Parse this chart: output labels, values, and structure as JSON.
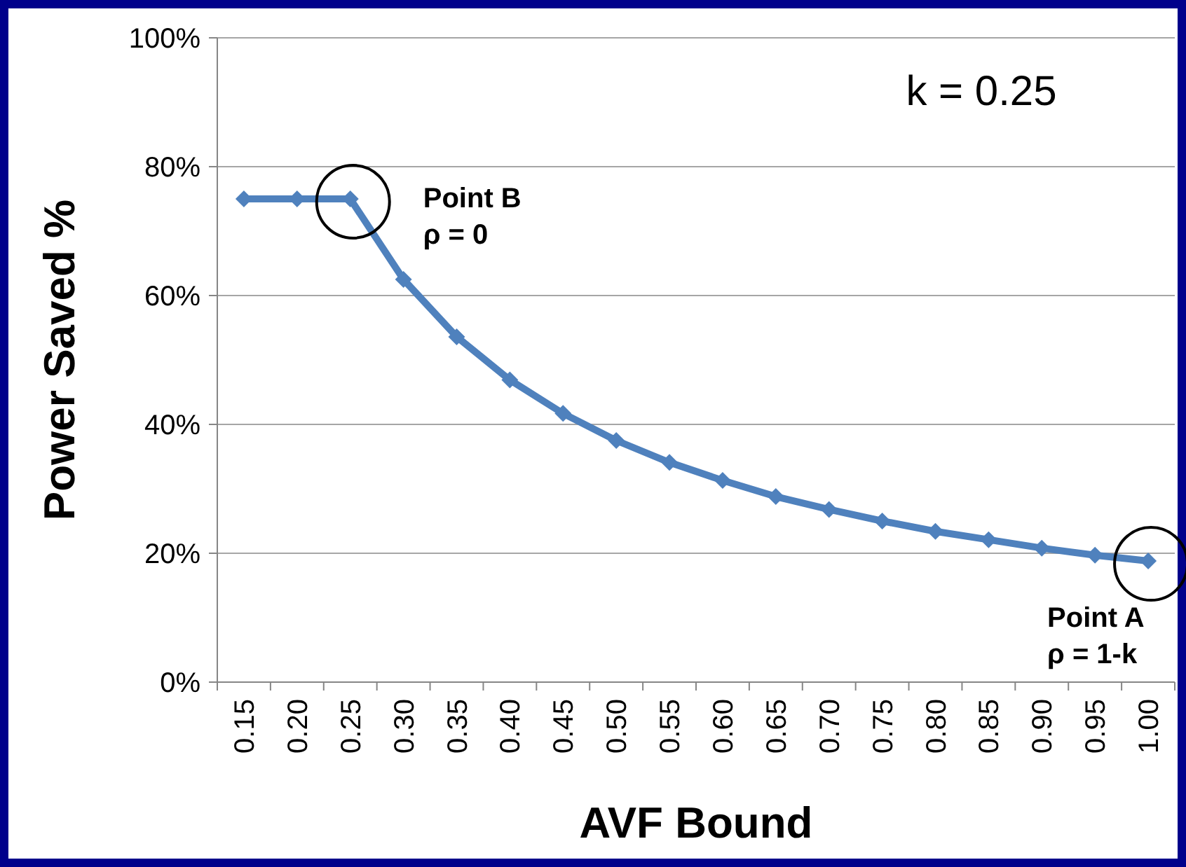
{
  "chart_data": {
    "type": "line",
    "xlabel": "AVF Bound",
    "ylabel": "Power Saved %",
    "categories": [
      "0.15",
      "0.20",
      "0.25",
      "0.30",
      "0.35",
      "0.40",
      "0.45",
      "0.50",
      "0.55",
      "0.60",
      "0.65",
      "0.70",
      "0.75",
      "0.80",
      "0.85",
      "0.90",
      "0.95",
      "1.00"
    ],
    "series": [
      {
        "color": "#4f81bd",
        "values": [
          75,
          75,
          75,
          62.5,
          53.6,
          46.9,
          41.7,
          37.5,
          34.1,
          31.3,
          28.8,
          26.8,
          25,
          23.4,
          22.1,
          20.8,
          19.7,
          18.8
        ]
      }
    ],
    "ylim": [
      0,
      100
    ],
    "yticks": [
      {
        "value": 0,
        "label": "0%"
      },
      {
        "value": 20,
        "label": "20%"
      },
      {
        "value": 40,
        "label": "40%"
      },
      {
        "value": 60,
        "label": "60%"
      },
      {
        "value": 80,
        "label": "80%"
      },
      {
        "value": 100,
        "label": "100%"
      }
    ],
    "grid": "y",
    "marker": "diamond",
    "line_style": "solid",
    "annotations": [
      "k = 0.25",
      {
        "text": "Point B\nρ = 0",
        "x": "0.25",
        "y": 75
      },
      {
        "text": "Point A\nρ = 1-k",
        "x": "1.00",
        "y": 18.8
      }
    ]
  }
}
